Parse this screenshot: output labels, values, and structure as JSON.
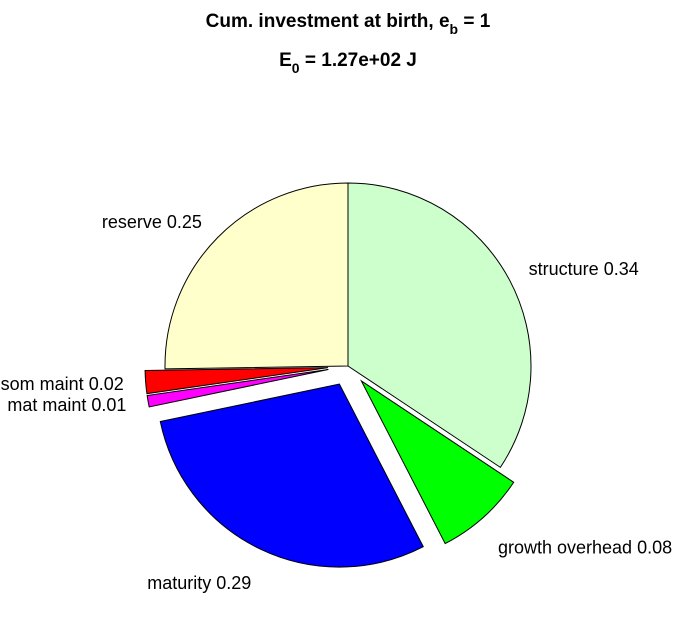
{
  "chart_data": {
    "type": "pie",
    "title": [
      "Cum. investment at birth, e",
      "b",
      " = 1"
    ],
    "subtitle": [
      "E",
      "0",
      " = 1.27e+02 J"
    ],
    "categories": [
      "structure",
      "growth overhead",
      "maturity",
      "mat maint",
      "som maint",
      "reserve"
    ],
    "values": [
      0.34,
      0.08,
      0.29,
      0.01,
      0.02,
      0.25
    ],
    "colors": [
      "#ccffcc",
      "#00ff00",
      "#0000ff",
      "#ff00ff",
      "#ff0000",
      "#ffffcc"
    ],
    "explode": [
      false,
      true,
      true,
      true,
      true,
      false
    ]
  }
}
